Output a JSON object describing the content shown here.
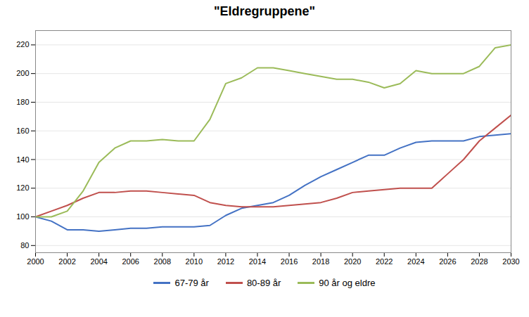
{
  "chart_data": {
    "type": "line",
    "title": "\"Eldregruppene\"",
    "x": [
      2000,
      2001,
      2002,
      2003,
      2004,
      2005,
      2006,
      2007,
      2008,
      2009,
      2010,
      2011,
      2012,
      2013,
      2014,
      2015,
      2016,
      2017,
      2018,
      2019,
      2020,
      2021,
      2022,
      2023,
      2024,
      2025,
      2026,
      2027,
      2028,
      2029,
      2030
    ],
    "series": [
      {
        "name": "67-79 år",
        "color": "#4472C4",
        "values": [
          100,
          97,
          91,
          91,
          90,
          91,
          92,
          92,
          93,
          93,
          93,
          94,
          101,
          106,
          108,
          110,
          115,
          122,
          128,
          133,
          138,
          143,
          143,
          148,
          152,
          153,
          153,
          153,
          156,
          157,
          158
        ]
      },
      {
        "name": "80-89 år",
        "color": "#C0504D",
        "values": [
          100,
          104,
          108,
          113,
          117,
          117,
          118,
          118,
          117,
          116,
          115,
          110,
          108,
          107,
          107,
          107,
          108,
          109,
          110,
          113,
          117,
          118,
          119,
          120,
          120,
          120,
          130,
          140,
          153,
          162,
          171
        ]
      },
      {
        "name": "90 år og eldre",
        "color": "#9BBB59",
        "values": [
          100,
          100,
          104,
          118,
          138,
          148,
          153,
          153,
          154,
          153,
          153,
          168,
          193,
          197,
          204,
          204,
          202,
          200,
          198,
          196,
          196,
          194,
          190,
          193,
          202,
          200,
          200,
          200,
          205,
          218,
          220
        ]
      }
    ],
    "xlim": [
      2000,
      2030
    ],
    "xticks": [
      2000,
      2002,
      2004,
      2006,
      2008,
      2010,
      2012,
      2014,
      2016,
      2018,
      2020,
      2022,
      2024,
      2026,
      2028,
      2030
    ],
    "ylim": [
      75,
      230
    ],
    "yticks": [
      80,
      100,
      120,
      140,
      160,
      180,
      200,
      220
    ],
    "grid": true,
    "legend": "bottom"
  }
}
